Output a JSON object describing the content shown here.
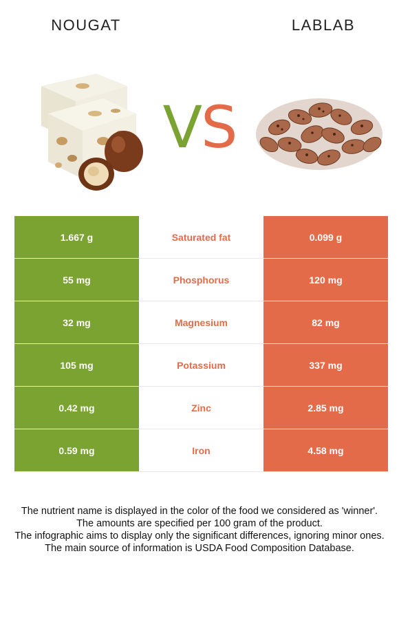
{
  "header": {
    "left_food": "NOUGAT",
    "right_food": "LABLAB",
    "vs_v": "V",
    "vs_s": "S"
  },
  "colors": {
    "winner_left": "#7aa332",
    "winner_right": "#e36b4a"
  },
  "nutrients": [
    {
      "name": "Saturated fat",
      "left": "1.667 g",
      "right": "0.099 g",
      "winner": "right"
    },
    {
      "name": "Phosphorus",
      "left": "55 mg",
      "right": "120 mg",
      "winner": "right"
    },
    {
      "name": "Magnesium",
      "left": "32 mg",
      "right": "82 mg",
      "winner": "right"
    },
    {
      "name": "Potassium",
      "left": "105 mg",
      "right": "337 mg",
      "winner": "right"
    },
    {
      "name": "Zinc",
      "left": "0.42 mg",
      "right": "2.85 mg",
      "winner": "right"
    },
    {
      "name": "Iron",
      "left": "0.59 mg",
      "right": "4.58 mg",
      "winner": "right"
    }
  ],
  "notes": [
    "The nutrient name is displayed in the color of the food we considered as 'winner'.",
    "The amounts are specified per 100 gram of the product.",
    "The infographic aims to display only the significant differences, ignoring minor ones.",
    "The main source of information is USDA Food Composition Database."
  ]
}
